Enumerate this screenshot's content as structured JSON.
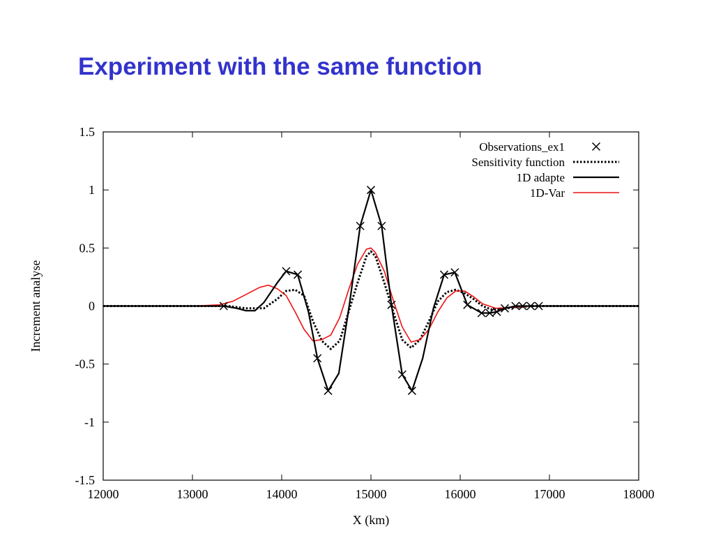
{
  "slide": {
    "title": "Experiment with the same function"
  },
  "chart_data": {
    "type": "line",
    "xlabel": "X (km)",
    "ylabel": "Increment analyse",
    "xlim": [
      12000,
      18000
    ],
    "ylim": [
      -1.5,
      1.5
    ],
    "xticks": [
      "12000",
      "13000",
      "14000",
      "15000",
      "16000",
      "17000",
      "18000"
    ],
    "yticks": [
      "-1.5",
      "-1",
      "-0.5",
      "0",
      "0.5",
      "1",
      "1.5"
    ],
    "legend_position": "top-right",
    "grid": false,
    "series": [
      {
        "name": "Observations_ex1",
        "style": "markers",
        "color": "#000000",
        "x": [
          13350,
          14050,
          14180,
          14400,
          14520,
          14880,
          15000,
          15120,
          15230,
          15350,
          15460,
          15820,
          15940,
          16080,
          16240,
          16330,
          16410,
          16500,
          16620,
          16700,
          16790,
          16880
        ],
        "y": [
          0.0,
          0.3,
          0.27,
          -0.45,
          -0.73,
          0.69,
          1.0,
          0.69,
          0.01,
          -0.59,
          -0.73,
          0.27,
          0.29,
          0.01,
          -0.06,
          -0.06,
          -0.05,
          -0.02,
          0.0,
          0.0,
          0.0,
          0.0
        ]
      },
      {
        "name": "Sensitivity function",
        "style": "dotted",
        "color": "#000000",
        "x": [
          12000,
          13000,
          13400,
          13600,
          13800,
          13950,
          14050,
          14150,
          14250,
          14350,
          14450,
          14550,
          14650,
          14750,
          14850,
          14950,
          15000,
          15050,
          15150,
          15250,
          15350,
          15450,
          15550,
          15650,
          15750,
          15850,
          15950,
          16050,
          16150,
          16250,
          16350,
          16450,
          16600,
          16800,
          17000,
          18000
        ],
        "y": [
          0.0,
          0.0,
          0.0,
          -0.02,
          -0.02,
          0.06,
          0.13,
          0.14,
          0.09,
          -0.13,
          -0.3,
          -0.37,
          -0.3,
          -0.05,
          0.2,
          0.43,
          0.47,
          0.43,
          0.2,
          -0.05,
          -0.29,
          -0.36,
          -0.29,
          -0.13,
          0.04,
          0.12,
          0.14,
          0.11,
          0.06,
          0.0,
          -0.03,
          -0.03,
          -0.01,
          0.0,
          0.0,
          0.0
        ]
      },
      {
        "name": "1D adapte",
        "style": "solid",
        "color": "#000000",
        "x": [
          12000,
          13000,
          13350,
          13500,
          13600,
          13700,
          13800,
          13950,
          14050,
          14180,
          14300,
          14400,
          14520,
          14640,
          14760,
          14880,
          15000,
          15120,
          15230,
          15350,
          15460,
          15580,
          15700,
          15820,
          15940,
          16080,
          16240,
          16330,
          16410,
          16500,
          16620,
          16700,
          16790,
          16880,
          17000,
          18000
        ],
        "y": [
          0.0,
          0.0,
          0.0,
          -0.02,
          -0.04,
          -0.04,
          0.03,
          0.2,
          0.3,
          0.27,
          -0.05,
          -0.45,
          -0.73,
          -0.58,
          0.02,
          0.69,
          1.0,
          0.69,
          0.01,
          -0.59,
          -0.73,
          -0.45,
          -0.02,
          0.27,
          0.29,
          0.01,
          -0.06,
          -0.06,
          -0.05,
          -0.02,
          0.0,
          0.0,
          0.0,
          0.0,
          0.0,
          0.0
        ]
      },
      {
        "name": "1D-Var",
        "style": "solid",
        "color": "#ee1111",
        "x": [
          12000,
          13000,
          13300,
          13450,
          13600,
          13750,
          13850,
          13950,
          14050,
          14150,
          14250,
          14350,
          14450,
          14550,
          14650,
          14750,
          14850,
          14950,
          15000,
          15050,
          15150,
          15250,
          15350,
          15450,
          15550,
          15650,
          15750,
          15850,
          15950,
          16050,
          16150,
          16250,
          16400,
          16600,
          16800,
          17000,
          18000
        ],
        "y": [
          0.0,
          0.0,
          0.01,
          0.04,
          0.1,
          0.16,
          0.18,
          0.15,
          0.09,
          -0.05,
          -0.2,
          -0.3,
          -0.29,
          -0.25,
          -0.1,
          0.14,
          0.36,
          0.49,
          0.5,
          0.46,
          0.3,
          0.05,
          -0.18,
          -0.31,
          -0.29,
          -0.2,
          -0.05,
          0.07,
          0.13,
          0.13,
          0.08,
          0.02,
          -0.02,
          -0.01,
          0.0,
          0.0,
          0.0
        ]
      }
    ]
  }
}
